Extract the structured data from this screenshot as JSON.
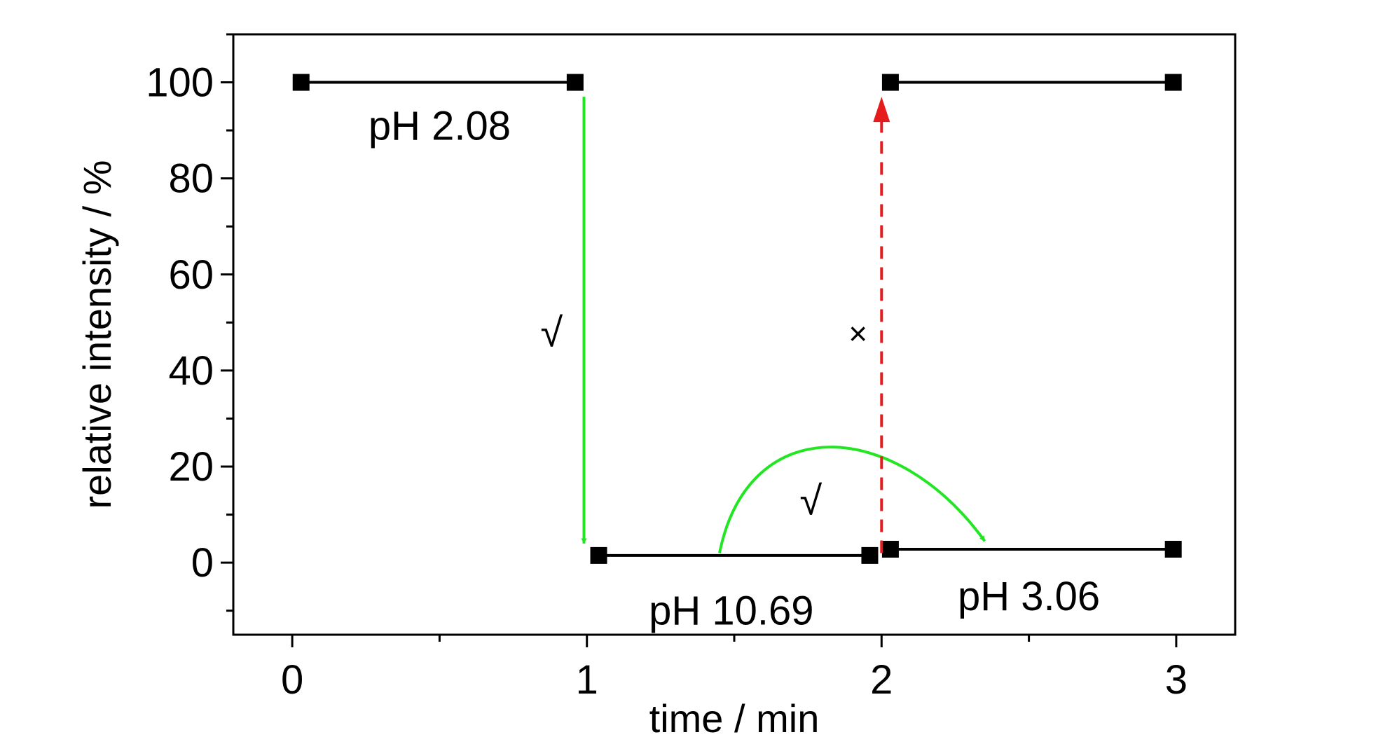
{
  "chart_data": {
    "type": "line",
    "title": "",
    "xlabel": "time / min",
    "ylabel": "relative intensity / %",
    "xlim": [
      -0.2,
      3.2
    ],
    "ylim": [
      -15,
      110
    ],
    "xticks": [
      0,
      1,
      2,
      3
    ],
    "xtick_labels": [
      "0",
      "1",
      "2",
      "3"
    ],
    "yticks": [
      0,
      20,
      40,
      60,
      80,
      100
    ],
    "ytick_labels": [
      "0",
      "20",
      "40",
      "60",
      "80",
      "100"
    ],
    "grid": false,
    "legend": "none",
    "marker": "square",
    "series": [
      {
        "points": [
          [
            0.03,
            100
          ],
          [
            0.96,
            100
          ]
        ]
      },
      {
        "points": [
          [
            1.04,
            1.5
          ],
          [
            1.96,
            1.5
          ]
        ]
      },
      {
        "points": [
          [
            2.03,
            100
          ],
          [
            2.99,
            100
          ]
        ]
      },
      {
        "points": [
          [
            2.03,
            2.8
          ],
          [
            2.99,
            2.8
          ]
        ]
      }
    ],
    "annotations": [
      {
        "text": "pH 2.08",
        "x": 0.5,
        "y": 91
      },
      {
        "text": "pH 10.69",
        "x": 1.49,
        "y": -10
      },
      {
        "text": "pH 3.06",
        "x": 2.5,
        "y": -7
      }
    ],
    "transitions": [
      {
        "symbol": "√",
        "color": "#22e622",
        "style": "solid",
        "from": [
          0.99,
          97
        ],
        "to": [
          0.99,
          4
        ]
      },
      {
        "symbol": "√",
        "color": "#22e622",
        "style": "solid-curve",
        "from": [
          1.45,
          2
        ],
        "to": [
          2.35,
          4.5
        ]
      },
      {
        "symbol": "×",
        "color": "#e61c1c",
        "style": "dashed",
        "from": [
          2.0,
          2
        ],
        "to": [
          2.0,
          97
        ]
      }
    ],
    "colors": {
      "line": "#000000",
      "ok": "#22e622",
      "fail": "#e61c1c"
    }
  }
}
